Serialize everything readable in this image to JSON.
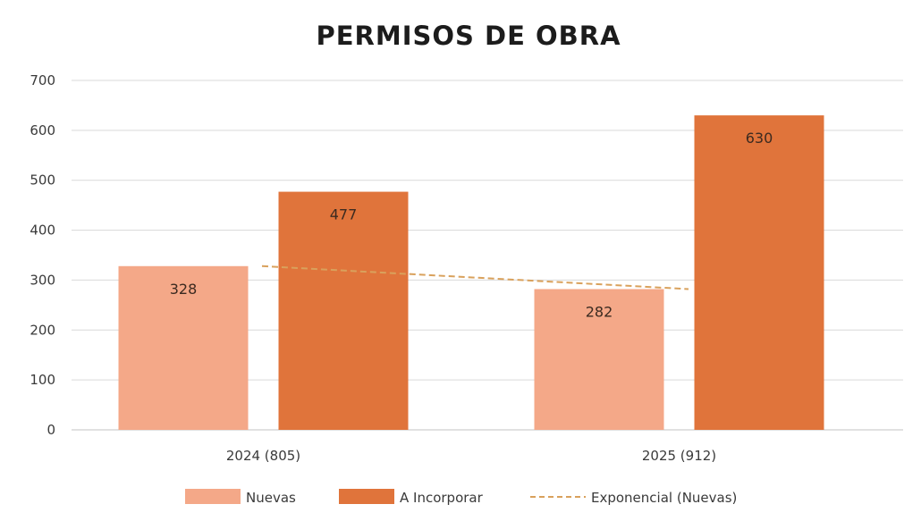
{
  "chart_data": {
    "type": "bar",
    "title": "PERMISOS DE OBRA",
    "xlabel": "",
    "ylabel": "",
    "categories": [
      "2024 (805)",
      "2025 (912)"
    ],
    "series": [
      {
        "name": "Nuevas",
        "values": [
          328,
          282
        ],
        "color": "#f4a888"
      },
      {
        "name": "A Incorporar",
        "values": [
          477,
          630
        ],
        "color": "#e0743b"
      }
    ],
    "data_labels": [
      [
        "328",
        "282"
      ],
      [
        "477",
        "630"
      ]
    ],
    "trendline": {
      "name": "Exponencial (Nuevas)",
      "of_series": "Nuevas",
      "style": "dashed",
      "color": "#d9a15c",
      "values": [
        328,
        282
      ]
    },
    "ylim": [
      0,
      700
    ],
    "yticks": [
      "0",
      "100",
      "200",
      "300",
      "400",
      "500",
      "600",
      "700"
    ],
    "grid": true,
    "legend_position": "bottom"
  }
}
